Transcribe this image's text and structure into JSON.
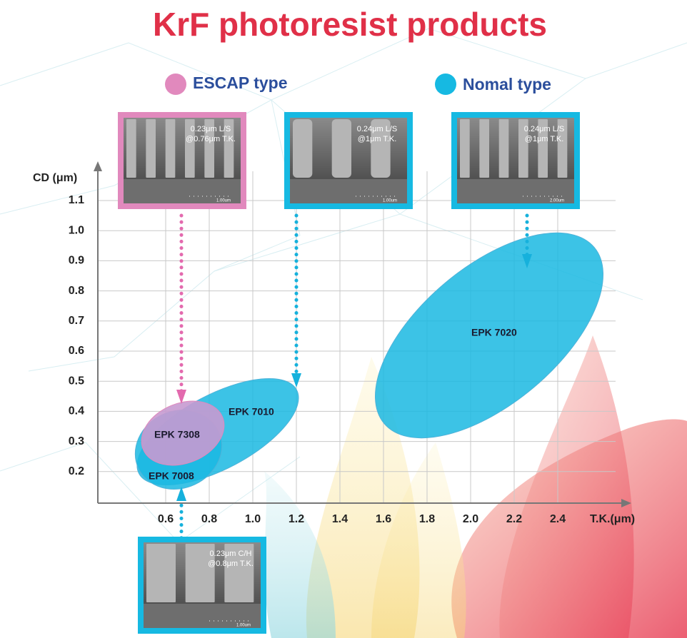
{
  "title": "KrF photoresist products",
  "legend": [
    {
      "label": "ESCAP type"
    },
    {
      "label": "Nomal type"
    }
  ],
  "axes": {
    "y_label": "CD (μm)",
    "y_ticks": [
      "1.1",
      "1.0",
      "0.9",
      "0.8",
      "0.7",
      "0.6",
      "0.5",
      "0.4",
      "0.3",
      "0.2"
    ],
    "x_label": "T.K.(μm)",
    "x_ticks": [
      "0.6",
      "0.8",
      "1.0",
      "1.2",
      "1.4",
      "1.6",
      "1.8",
      "2.0",
      "2.2",
      "2.4"
    ]
  },
  "products": [
    {
      "label": "EPK 7020"
    },
    {
      "label": "EPK 7010"
    },
    {
      "label": "EPK 7308"
    },
    {
      "label": "EPK 7008"
    }
  ],
  "images": [
    {
      "caption_1": "0.23μm L/S",
      "caption_2": "@0.76μm T.K.",
      "scale": "1.00um"
    },
    {
      "caption_1": "0.24μm L/S",
      "caption_2": "@1μm T.K.",
      "scale": "1.00um"
    },
    {
      "caption_1": "0.24μm L/S",
      "caption_2": "@1μm T.K.",
      "scale": "2.00um"
    },
    {
      "caption_1": "0.23μm C/H",
      "caption_2": "@0.8μm T.K.",
      "scale": "1.00um"
    }
  ]
}
